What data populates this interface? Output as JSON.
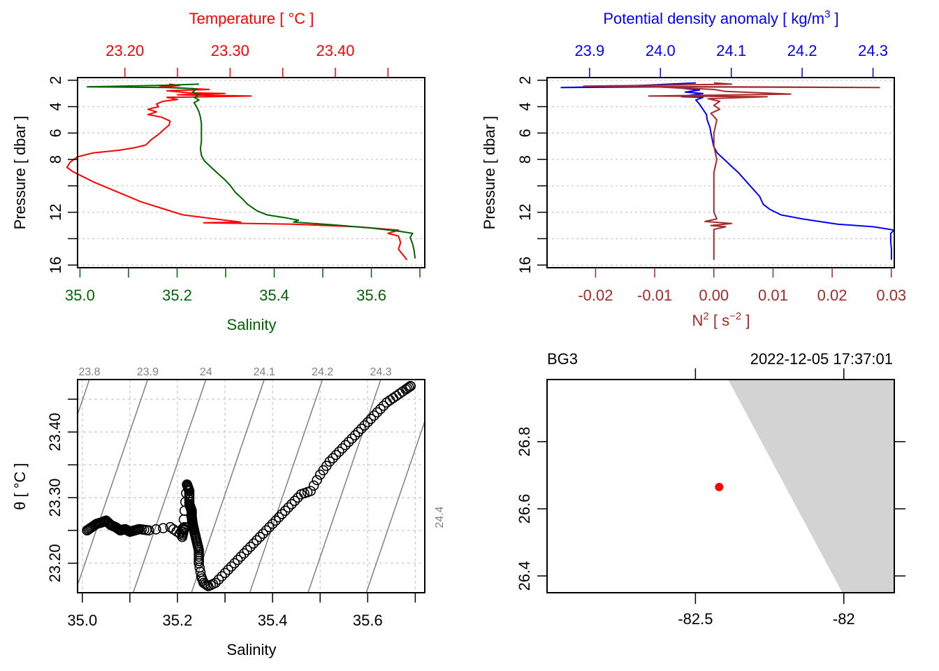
{
  "chart_data": [
    {
      "id": "profile-ts",
      "type": "line",
      "panel": "top-left",
      "top_axis_label": "Temperature [ °C ]",
      "top_axis_color": "#ff0000",
      "top_axis_ticks": [
        "23.20",
        "",
        "23.30",
        "",
        "23.40",
        ""
      ],
      "top_axis_tick_values": [
        23.2,
        23.25,
        23.3,
        23.35,
        23.4,
        23.45
      ],
      "xlabel": "Salinity",
      "xlabel_color": "#006400",
      "x_ticks": [
        "35.0",
        "",
        "35.2",
        "",
        "35.4",
        "",
        "35.6",
        ""
      ],
      "x_tick_values": [
        35.0,
        35.1,
        35.2,
        35.3,
        35.4,
        35.5,
        35.6,
        35.7
      ],
      "xlim": [
        34.995,
        35.71
      ],
      "temp_lim": [
        23.155,
        23.485
      ],
      "ylabel": "Pressure [ dbar ]",
      "y_ticks": [
        "2",
        "4",
        "6",
        "8",
        "",
        "12",
        "",
        "16"
      ],
      "y_tick_values": [
        2,
        4,
        6,
        8,
        10,
        12,
        14,
        16
      ],
      "ylim": [
        16.2,
        1.8
      ],
      "grid": true,
      "series": [
        {
          "name": "Temperature",
          "color": "#ff0000",
          "axis": "top",
          "points": [
            [
              23.242,
              2.3
            ],
            [
              23.252,
              2.4
            ],
            [
              23.233,
              2.5
            ],
            [
              23.28,
              2.7
            ],
            [
              23.24,
              2.8
            ],
            [
              23.26,
              2.95
            ],
            [
              23.295,
              3.0
            ],
            [
              23.25,
              3.1
            ],
            [
              23.32,
              3.2
            ],
            [
              23.24,
              3.3
            ],
            [
              23.25,
              3.45
            ],
            [
              23.236,
              3.6
            ],
            [
              23.23,
              3.8
            ],
            [
              23.232,
              4.0
            ],
            [
              23.222,
              4.2
            ],
            [
              23.23,
              4.4
            ],
            [
              23.222,
              4.6
            ],
            [
              23.235,
              4.8
            ],
            [
              23.243,
              5.1
            ],
            [
              23.242,
              5.4
            ],
            [
              23.236,
              5.8
            ],
            [
              23.232,
              6.1
            ],
            [
              23.225,
              6.5
            ],
            [
              23.22,
              6.9
            ],
            [
              23.21,
              7.1
            ],
            [
              23.195,
              7.3
            ],
            [
              23.17,
              7.5
            ],
            [
              23.155,
              7.8
            ],
            [
              23.148,
              8.2
            ],
            [
              23.145,
              8.6
            ],
            [
              23.15,
              8.9
            ],
            [
              23.16,
              9.3
            ],
            [
              23.17,
              9.7
            ],
            [
              23.185,
              10.2
            ],
            [
              23.2,
              10.7
            ],
            [
              23.215,
              11.2
            ],
            [
              23.235,
              11.7
            ],
            [
              23.255,
              12.2
            ],
            [
              23.285,
              12.5
            ],
            [
              23.31,
              12.75
            ],
            [
              23.275,
              12.8
            ],
            [
              23.36,
              12.9
            ],
            [
              23.42,
              13.1
            ],
            [
              23.46,
              13.35
            ],
            [
              23.45,
              13.6
            ],
            [
              23.46,
              13.8
            ],
            [
              23.462,
              14.3
            ],
            [
              23.46,
              14.8
            ],
            [
              23.465,
              15.3
            ],
            [
              23.468,
              15.6
            ]
          ]
        },
        {
          "name": "Salinity",
          "color": "#006400",
          "axis": "bottom",
          "points": [
            [
              35.245,
              2.3
            ],
            [
              35.16,
              2.4
            ],
            [
              35.015,
              2.5
            ],
            [
              35.18,
              2.55
            ],
            [
              35.24,
              2.65
            ],
            [
              35.232,
              2.9
            ],
            [
              35.245,
              3.1
            ],
            [
              35.235,
              3.3
            ],
            [
              35.245,
              3.5
            ],
            [
              35.235,
              3.7
            ],
            [
              35.24,
              4.0
            ],
            [
              35.245,
              4.4
            ],
            [
              35.248,
              4.8
            ],
            [
              35.25,
              5.3
            ],
            [
              35.25,
              6.0
            ],
            [
              35.25,
              6.6
            ],
            [
              35.248,
              7.2
            ],
            [
              35.25,
              7.7
            ],
            [
              35.256,
              8.1
            ],
            [
              35.27,
              8.6
            ],
            [
              35.285,
              9.1
            ],
            [
              35.3,
              9.6
            ],
            [
              35.31,
              10.0
            ],
            [
              35.32,
              10.5
            ],
            [
              35.335,
              11.0
            ],
            [
              35.345,
              11.4
            ],
            [
              35.365,
              11.9
            ],
            [
              35.385,
              12.2
            ],
            [
              35.42,
              12.4
            ],
            [
              35.45,
              12.6
            ],
            [
              35.44,
              12.75
            ],
            [
              35.52,
              12.95
            ],
            [
              35.6,
              13.2
            ],
            [
              35.66,
              13.45
            ],
            [
              35.685,
              13.6
            ],
            [
              35.68,
              13.9
            ],
            [
              35.685,
              14.4
            ],
            [
              35.688,
              14.9
            ],
            [
              35.69,
              15.5
            ]
          ]
        }
      ]
    },
    {
      "id": "profile-density-n2",
      "type": "line",
      "panel": "top-right",
      "top_axis_label": "Potential density anomaly [ kg/m",
      "top_axis_label_sup": "3",
      "top_axis_label_end": " ]",
      "top_axis_color": "#0000ff",
      "top_axis_ticks": [
        "23.9",
        "24.0",
        "24.1",
        "24.2",
        "24.3"
      ],
      "top_axis_tick_values": [
        23.9,
        24.0,
        24.1,
        24.2,
        24.3
      ],
      "sigma_lim": [
        23.84,
        24.33
      ],
      "xlabel": "N",
      "xlabel_sup": "2",
      "xlabel_mid": " [ s",
      "xlabel_sup2": "−2",
      "xlabel_end": " ]",
      "xlabel_color": "#a52a2a",
      "x_ticks": [
        "-0.02",
        "-0.01",
        "0.00",
        "0.01",
        "0.02",
        "0.03"
      ],
      "x_tick_values": [
        -0.02,
        -0.01,
        0.0,
        0.01,
        0.02,
        0.03
      ],
      "xlim": [
        -0.0282,
        0.0305
      ],
      "ylabel": "Pressure [ dbar ]",
      "y_ticks": [
        "2",
        "4",
        "6",
        "8",
        "",
        "12",
        "",
        "16"
      ],
      "y_tick_values": [
        2,
        4,
        6,
        8,
        10,
        12,
        14,
        16
      ],
      "ylim": [
        16.2,
        1.8
      ],
      "grid": true,
      "series": [
        {
          "name": "Potential density anomaly",
          "color": "#0000ff",
          "axis": "top",
          "points": [
            [
              24.05,
              2.2
            ],
            [
              23.95,
              2.45
            ],
            [
              23.86,
              2.55
            ],
            [
              24.0,
              2.5
            ],
            [
              24.03,
              2.6
            ],
            [
              24.055,
              2.75
            ],
            [
              24.035,
              2.9
            ],
            [
              24.06,
              3.0
            ],
            [
              24.04,
              3.15
            ],
            [
              24.03,
              3.25
            ],
            [
              24.06,
              3.3
            ],
            [
              24.05,
              3.5
            ],
            [
              24.055,
              3.8
            ],
            [
              24.06,
              4.2
            ],
            [
              24.065,
              4.6
            ],
            [
              24.066,
              5.0
            ],
            [
              24.07,
              5.6
            ],
            [
              24.072,
              6.2
            ],
            [
              24.075,
              7.0
            ],
            [
              24.08,
              7.5
            ],
            [
              24.09,
              8.0
            ],
            [
              24.1,
              8.5
            ],
            [
              24.11,
              9.0
            ],
            [
              24.12,
              9.6
            ],
            [
              24.13,
              10.2
            ],
            [
              24.14,
              10.8
            ],
            [
              24.145,
              11.4
            ],
            [
              24.155,
              11.8
            ],
            [
              24.17,
              12.2
            ],
            [
              24.2,
              12.5
            ],
            [
              24.23,
              12.75
            ],
            [
              24.25,
              12.9
            ],
            [
              24.3,
              13.1
            ],
            [
              24.33,
              13.35
            ],
            [
              24.325,
              13.6
            ],
            [
              24.325,
              14.2
            ],
            [
              24.326,
              14.8
            ],
            [
              24.326,
              15.6
            ]
          ]
        },
        {
          "name": "N2",
          "color": "#a52a2a",
          "axis": "bottom",
          "points": [
            [
              0.0,
              2.2
            ],
            [
              0.003,
              2.3
            ],
            [
              -0.022,
              2.45
            ],
            [
              0.028,
              2.55
            ],
            [
              -0.01,
              2.5
            ],
            [
              0.0,
              2.7
            ],
            [
              0.002,
              2.85
            ],
            [
              0.013,
              3.05
            ],
            [
              -0.011,
              3.2
            ],
            [
              0.009,
              3.25
            ],
            [
              -0.001,
              3.4
            ],
            [
              0.001,
              3.6
            ],
            [
              0.0,
              3.9
            ],
            [
              0.001,
              4.2
            ],
            [
              -0.0005,
              4.5
            ],
            [
              0.0005,
              5.0
            ],
            [
              0.0,
              6.0
            ],
            [
              0.0,
              7.0
            ],
            [
              0.0005,
              8.0
            ],
            [
              0.0,
              9.0
            ],
            [
              0.0,
              10.0
            ],
            [
              0.0,
              11.0
            ],
            [
              0.0,
              12.0
            ],
            [
              0.0005,
              12.5
            ],
            [
              -0.0015,
              12.7
            ],
            [
              0.003,
              12.85
            ],
            [
              -0.0005,
              13.0
            ],
            [
              0.002,
              13.1
            ],
            [
              0.0,
              13.3
            ],
            [
              0.0,
              14.0
            ],
            [
              0.0,
              15.0
            ],
            [
              0.0,
              15.6
            ]
          ]
        }
      ]
    },
    {
      "id": "ts-diagram",
      "type": "scatter",
      "panel": "bottom-left",
      "xlabel": "Salinity",
      "ylabel": "θ [ °C ]",
      "x_ticks": [
        "35.0",
        "",
        "35.2",
        "",
        "35.4",
        "",
        "35.6",
        ""
      ],
      "x_tick_values": [
        35.0,
        35.1,
        35.2,
        35.3,
        35.4,
        35.5,
        35.6,
        35.7
      ],
      "xlim": [
        34.99,
        35.72
      ],
      "y_ticks": [
        "23.20",
        "",
        "23.30",
        "",
        "23.40",
        ""
      ],
      "y_tick_values": [
        23.2,
        23.25,
        23.3,
        23.35,
        23.4,
        23.45
      ],
      "ylim": [
        23.155,
        23.48
      ],
      "grid": true,
      "isopycnal_labels": [
        "23.8",
        "23.9",
        "24",
        "24.1",
        "24.2",
        "24.3",
        "24.4"
      ],
      "isopycnal_values": [
        23.8,
        23.9,
        24.0,
        24.1,
        24.2,
        24.3,
        24.4
      ],
      "isopycnal_color": "#808080",
      "point_color": "#000000",
      "points": [
        [
          35.01,
          23.25
        ],
        [
          35.02,
          23.255
        ],
        [
          35.03,
          23.26
        ],
        [
          35.04,
          23.262
        ],
        [
          35.05,
          23.265
        ],
        [
          35.06,
          23.258
        ],
        [
          35.07,
          23.255
        ],
        [
          35.08,
          23.25
        ],
        [
          35.09,
          23.252
        ],
        [
          35.1,
          23.248
        ],
        [
          35.11,
          23.25
        ],
        [
          35.12,
          23.252
        ],
        [
          35.14,
          23.25
        ],
        [
          35.185,
          23.255
        ],
        [
          35.205,
          23.245
        ],
        [
          35.215,
          23.255
        ],
        [
          35.21,
          23.24
        ],
        [
          35.22,
          23.32
        ],
        [
          35.225,
          23.31
        ],
        [
          35.225,
          23.29
        ],
        [
          35.23,
          23.28
        ],
        [
          35.23,
          23.27
        ],
        [
          35.232,
          23.26
        ],
        [
          35.235,
          23.25
        ],
        [
          35.24,
          23.235
        ],
        [
          35.245,
          23.22
        ],
        [
          35.245,
          23.2
        ],
        [
          35.25,
          23.18
        ],
        [
          35.255,
          23.17
        ],
        [
          35.265,
          23.165
        ],
        [
          35.28,
          23.17
        ],
        [
          35.3,
          23.185
        ],
        [
          35.32,
          23.2
        ],
        [
          35.34,
          23.215
        ],
        [
          35.36,
          23.23
        ],
        [
          35.38,
          23.245
        ],
        [
          35.4,
          23.26
        ],
        [
          35.42,
          23.275
        ],
        [
          35.44,
          23.29
        ],
        [
          35.46,
          23.305
        ],
        [
          35.48,
          23.31
        ],
        [
          35.5,
          23.335
        ],
        [
          35.52,
          23.355
        ],
        [
          35.54,
          23.37
        ],
        [
          35.56,
          23.385
        ],
        [
          35.58,
          23.4
        ],
        [
          35.6,
          23.415
        ],
        [
          35.62,
          23.43
        ],
        [
          35.64,
          23.445
        ],
        [
          35.66,
          23.455
        ],
        [
          35.68,
          23.465
        ],
        [
          35.69,
          23.47
        ]
      ]
    },
    {
      "id": "station-map",
      "type": "scatter",
      "panel": "bottom-right",
      "title_left": "BG3",
      "title_right": "2022-12-05 17:37:01",
      "x_ticks": [
        "-82.5",
        "-82"
      ],
      "x_tick_values": [
        -82.5,
        -82.0
      ],
      "xlim": [
        -83.0,
        -81.83
      ],
      "y_ticks": [
        "26.4",
        "26.6",
        "26.8"
      ],
      "y_tick_values": [
        26.4,
        26.6,
        26.8
      ],
      "ylim": [
        26.35,
        26.985
      ],
      "land_color": "#d3d3d3",
      "land_polygon": [
        [
          -82.39,
          26.985
        ],
        [
          -81.83,
          26.985
        ],
        [
          -81.83,
          26.35
        ],
        [
          -82.005,
          26.35
        ]
      ],
      "station": {
        "lon": -82.42,
        "lat": 26.665,
        "color": "#ff0000"
      }
    }
  ]
}
